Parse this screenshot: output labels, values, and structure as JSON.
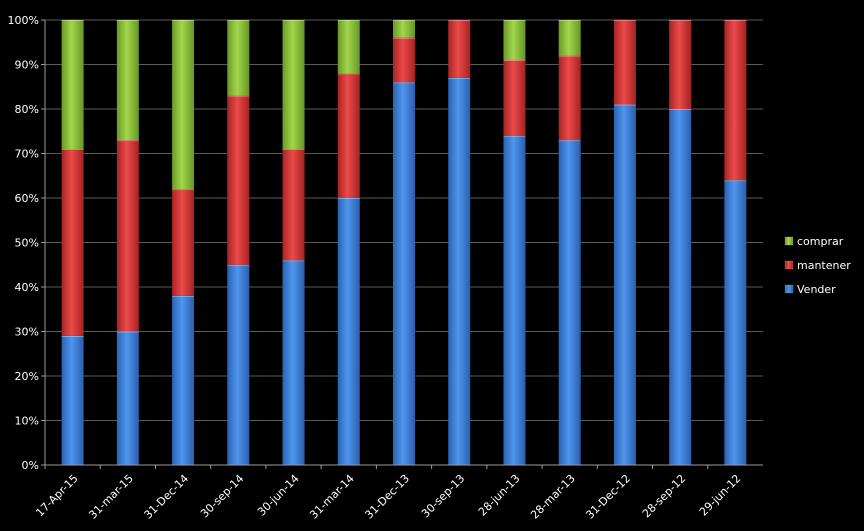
{
  "chart_data": {
    "type": "bar",
    "stacked": true,
    "percent": true,
    "categories": [
      "17-Apr-15",
      "31-mar-15",
      "31-Dec-14",
      "30-sep-14",
      "30-jun-14",
      "31-mar-14",
      "31-Dec-13",
      "30-sep-13",
      "28-jun-13",
      "28-mar-13",
      "31-Dec-12",
      "28-sep-12",
      "29-jun-12"
    ],
    "series": [
      {
        "name": "Vender",
        "color": "#3d7fd8",
        "values": [
          29,
          30,
          38,
          45,
          46,
          60,
          86,
          87,
          74,
          73,
          81,
          80,
          64
        ]
      },
      {
        "name": "mantener",
        "color": "#d93636",
        "values": [
          42,
          43,
          24,
          38,
          25,
          28,
          10,
          13,
          17,
          19,
          19,
          20,
          36
        ]
      },
      {
        "name": "comprar",
        "color": "#8cbf3a",
        "values": [
          29,
          27,
          38,
          17,
          29,
          12,
          4,
          0,
          9,
          8,
          0,
          0,
          0
        ]
      }
    ],
    "yticks": [
      "0%",
      "10%",
      "20%",
      "30%",
      "40%",
      "50%",
      "60%",
      "70%",
      "80%",
      "90%",
      "100%"
    ],
    "ylim": [
      0,
      100
    ],
    "grid": true,
    "legend": "right",
    "legend_order": [
      "comprar",
      "mantener",
      "Vender"
    ],
    "title": "",
    "xlabel": "",
    "ylabel": ""
  }
}
